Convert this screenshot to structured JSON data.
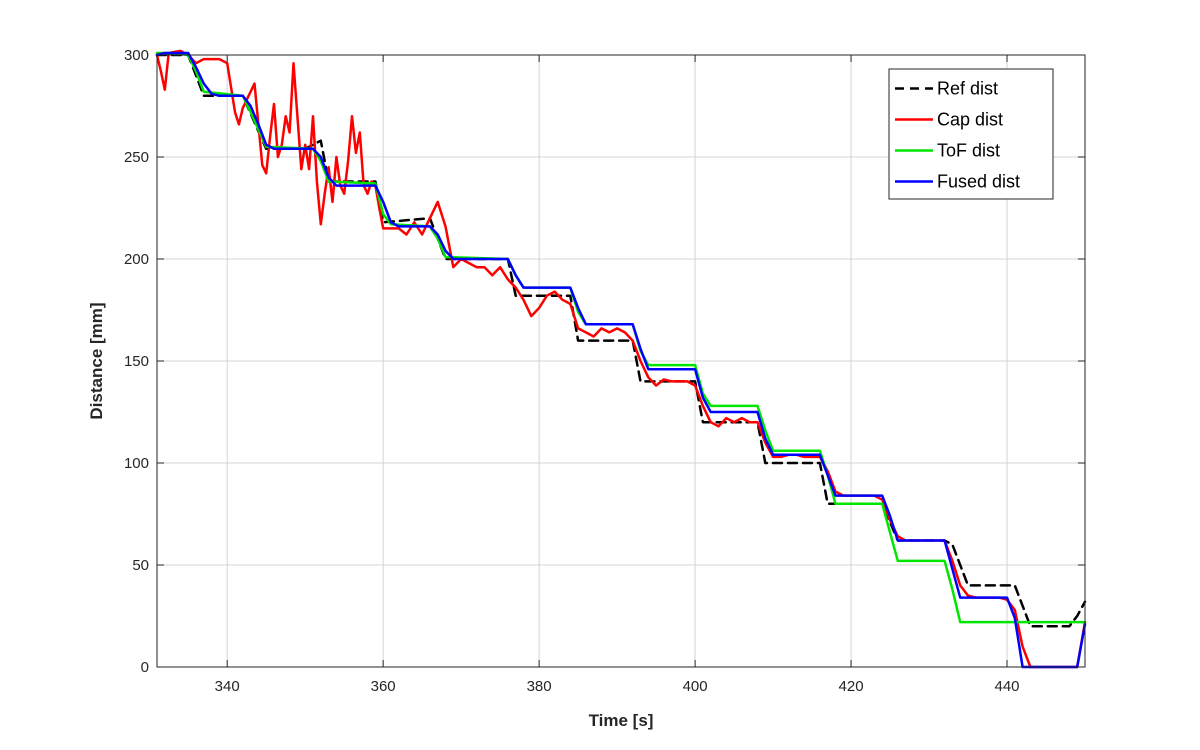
{
  "chart_data": {
    "type": "line",
    "title": "",
    "xlabel": "Time [s]",
    "ylabel": "Distance [mm]",
    "xlim": [
      331,
      450
    ],
    "ylim": [
      0,
      300
    ],
    "xticks": [
      340,
      360,
      380,
      400,
      420,
      440
    ],
    "yticks": [
      0,
      50,
      100,
      150,
      200,
      250,
      300
    ],
    "grid": true,
    "legend_position": "top-right",
    "series": [
      {
        "name": "Ref dist",
        "color": "#000000",
        "style": "dashed",
        "points": [
          [
            331,
            300
          ],
          [
            335,
            300
          ],
          [
            337,
            280
          ],
          [
            342,
            280
          ],
          [
            345,
            254
          ],
          [
            350,
            254
          ],
          [
            352,
            258
          ],
          [
            353,
            238
          ],
          [
            359,
            238
          ],
          [
            360,
            218
          ],
          [
            366,
            220
          ],
          [
            368,
            200
          ],
          [
            376,
            200
          ],
          [
            377,
            182
          ],
          [
            384,
            182
          ],
          [
            385,
            160
          ],
          [
            391,
            160
          ],
          [
            392,
            160
          ],
          [
            393,
            140
          ],
          [
            399,
            140
          ],
          [
            400,
            140
          ],
          [
            401,
            120
          ],
          [
            408,
            120
          ],
          [
            409,
            100
          ],
          [
            416,
            100
          ],
          [
            417,
            80
          ],
          [
            423,
            80
          ],
          [
            424,
            80
          ],
          [
            426,
            62
          ],
          [
            432,
            62
          ],
          [
            433,
            60
          ],
          [
            435,
            40
          ],
          [
            441,
            40
          ],
          [
            443,
            20
          ],
          [
            448,
            20
          ],
          [
            449,
            25
          ],
          [
            450,
            32
          ]
        ]
      },
      {
        "name": "Cap dist",
        "color": "#ff0000",
        "style": "solid",
        "points": [
          [
            331,
            300
          ],
          [
            331.5,
            292
          ],
          [
            332,
            283
          ],
          [
            332.5,
            301
          ],
          [
            334,
            302
          ],
          [
            335,
            300
          ],
          [
            336,
            296
          ],
          [
            337,
            298
          ],
          [
            338,
            298
          ],
          [
            339,
            298
          ],
          [
            340,
            296
          ],
          [
            341,
            272
          ],
          [
            341.5,
            266
          ],
          [
            342,
            274
          ],
          [
            343,
            282
          ],
          [
            343.5,
            286
          ],
          [
            344,
            266
          ],
          [
            344.5,
            246
          ],
          [
            345,
            242
          ],
          [
            345.5,
            260
          ],
          [
            346,
            276
          ],
          [
            346.5,
            250
          ],
          [
            347,
            256
          ],
          [
            347.5,
            270
          ],
          [
            348,
            262
          ],
          [
            348.5,
            296
          ],
          [
            349,
            270
          ],
          [
            349.5,
            244
          ],
          [
            350,
            256
          ],
          [
            350.5,
            244
          ],
          [
            351,
            270
          ],
          [
            351.5,
            238
          ],
          [
            352,
            217
          ],
          [
            352.5,
            232
          ],
          [
            353,
            245
          ],
          [
            353.5,
            228
          ],
          [
            354,
            250
          ],
          [
            354.5,
            236
          ],
          [
            355,
            232
          ],
          [
            355.5,
            248
          ],
          [
            356,
            270
          ],
          [
            356.5,
            252
          ],
          [
            357,
            262
          ],
          [
            357.5,
            236
          ],
          [
            358,
            232
          ],
          [
            358.5,
            238
          ],
          [
            359,
            236
          ],
          [
            359.5,
            225
          ],
          [
            360,
            215
          ],
          [
            361,
            215
          ],
          [
            362,
            215
          ],
          [
            363,
            212
          ],
          [
            364,
            218
          ],
          [
            365,
            212
          ],
          [
            366,
            220
          ],
          [
            367,
            228
          ],
          [
            368,
            216
          ],
          [
            369,
            196
          ],
          [
            370,
            200
          ],
          [
            371,
            198
          ],
          [
            372,
            196
          ],
          [
            373,
            196
          ],
          [
            374,
            192
          ],
          [
            375,
            196
          ],
          [
            376,
            190
          ],
          [
            377,
            186
          ],
          [
            378,
            180
          ],
          [
            379,
            172
          ],
          [
            380,
            176
          ],
          [
            381,
            182
          ],
          [
            382,
            184
          ],
          [
            383,
            180
          ],
          [
            384,
            178
          ],
          [
            385,
            166
          ],
          [
            386,
            164
          ],
          [
            387,
            162
          ],
          [
            388,
            166
          ],
          [
            389,
            164
          ],
          [
            390,
            166
          ],
          [
            391,
            164
          ],
          [
            392,
            160
          ],
          [
            393,
            150
          ],
          [
            394,
            142
          ],
          [
            395,
            138
          ],
          [
            396,
            141
          ],
          [
            397,
            140
          ],
          [
            398,
            140
          ],
          [
            399,
            140
          ],
          [
            400,
            138
          ],
          [
            401,
            128
          ],
          [
            402,
            120
          ],
          [
            403,
            118
          ],
          [
            404,
            122
          ],
          [
            405,
            120
          ],
          [
            406,
            122
          ],
          [
            407,
            120
          ],
          [
            408,
            120
          ],
          [
            409,
            110
          ],
          [
            410,
            103
          ],
          [
            411,
            103
          ],
          [
            412,
            104
          ],
          [
            413,
            104
          ],
          [
            414,
            103
          ],
          [
            415,
            103
          ],
          [
            416,
            103
          ],
          [
            417,
            96
          ],
          [
            418,
            86
          ],
          [
            419,
            84
          ],
          [
            420,
            84
          ],
          [
            421,
            84
          ],
          [
            422,
            84
          ],
          [
            423,
            84
          ],
          [
            424,
            82
          ],
          [
            425,
            72
          ],
          [
            426,
            64
          ],
          [
            427,
            62
          ],
          [
            428,
            62
          ],
          [
            429,
            62
          ],
          [
            430,
            62
          ],
          [
            431,
            62
          ],
          [
            432,
            62
          ],
          [
            433,
            52
          ],
          [
            434,
            40
          ],
          [
            435,
            35
          ],
          [
            436,
            34
          ],
          [
            437,
            34
          ],
          [
            438,
            34
          ],
          [
            439,
            34
          ],
          [
            440,
            33
          ],
          [
            441,
            28
          ],
          [
            442,
            10
          ],
          [
            443,
            0
          ],
          [
            448,
            0
          ],
          [
            449,
            0
          ],
          [
            450,
            22
          ]
        ]
      },
      {
        "name": "ToF dist",
        "color": "#00e600",
        "style": "solid",
        "points": [
          [
            331,
            301
          ],
          [
            333,
            301
          ],
          [
            335,
            300
          ],
          [
            336,
            292
          ],
          [
            337,
            282
          ],
          [
            342,
            280
          ],
          [
            343,
            272
          ],
          [
            345,
            255
          ],
          [
            351,
            254
          ],
          [
            352,
            248
          ],
          [
            353,
            238
          ],
          [
            359,
            237
          ],
          [
            360,
            222
          ],
          [
            361,
            217
          ],
          [
            366,
            216
          ],
          [
            367,
            210
          ],
          [
            368,
            201
          ],
          [
            376,
            200
          ],
          [
            377,
            192
          ],
          [
            378,
            186
          ],
          [
            384,
            186
          ],
          [
            385,
            174
          ],
          [
            386,
            168
          ],
          [
            392,
            168
          ],
          [
            393,
            155
          ],
          [
            394,
            148
          ],
          [
            400,
            148
          ],
          [
            401,
            134
          ],
          [
            402,
            128
          ],
          [
            408,
            128
          ],
          [
            409,
            116
          ],
          [
            410,
            106
          ],
          [
            416,
            106
          ],
          [
            417,
            94
          ],
          [
            418,
            80
          ],
          [
            424,
            80
          ],
          [
            425,
            66
          ],
          [
            426,
            52
          ],
          [
            432,
            52
          ],
          [
            433,
            38
          ],
          [
            434,
            22
          ],
          [
            450,
            22
          ]
        ]
      },
      {
        "name": "Fused dist",
        "color": "#0000ff",
        "style": "solid",
        "points": [
          [
            331,
            300
          ],
          [
            332,
            301
          ],
          [
            334,
            301
          ],
          [
            335,
            301
          ],
          [
            336,
            294
          ],
          [
            337,
            286
          ],
          [
            338,
            281
          ],
          [
            339,
            280
          ],
          [
            341,
            280
          ],
          [
            342,
            280
          ],
          [
            343,
            275
          ],
          [
            344,
            266
          ],
          [
            345,
            256
          ],
          [
            346,
            254
          ],
          [
            350,
            254
          ],
          [
            351,
            254
          ],
          [
            352,
            250
          ],
          [
            353,
            240
          ],
          [
            354,
            236
          ],
          [
            359,
            236
          ],
          [
            360,
            228
          ],
          [
            361,
            218
          ],
          [
            362,
            216
          ],
          [
            366,
            216
          ],
          [
            367,
            212
          ],
          [
            368,
            204
          ],
          [
            369,
            200
          ],
          [
            376,
            200
          ],
          [
            377,
            192
          ],
          [
            378,
            186
          ],
          [
            384,
            186
          ],
          [
            385,
            176
          ],
          [
            386,
            168
          ],
          [
            392,
            168
          ],
          [
            393,
            156
          ],
          [
            394,
            146
          ],
          [
            400,
            146
          ],
          [
            401,
            132
          ],
          [
            402,
            125
          ],
          [
            408,
            125
          ],
          [
            409,
            112
          ],
          [
            410,
            104
          ],
          [
            416,
            104
          ],
          [
            417,
            94
          ],
          [
            418,
            84
          ],
          [
            424,
            84
          ],
          [
            425,
            74
          ],
          [
            426,
            62
          ],
          [
            432,
            62
          ],
          [
            433,
            48
          ],
          [
            434,
            34
          ],
          [
            440,
            34
          ],
          [
            441,
            24
          ],
          [
            442,
            0
          ],
          [
            448,
            0
          ],
          [
            449,
            0
          ],
          [
            450,
            21
          ]
        ]
      }
    ]
  }
}
